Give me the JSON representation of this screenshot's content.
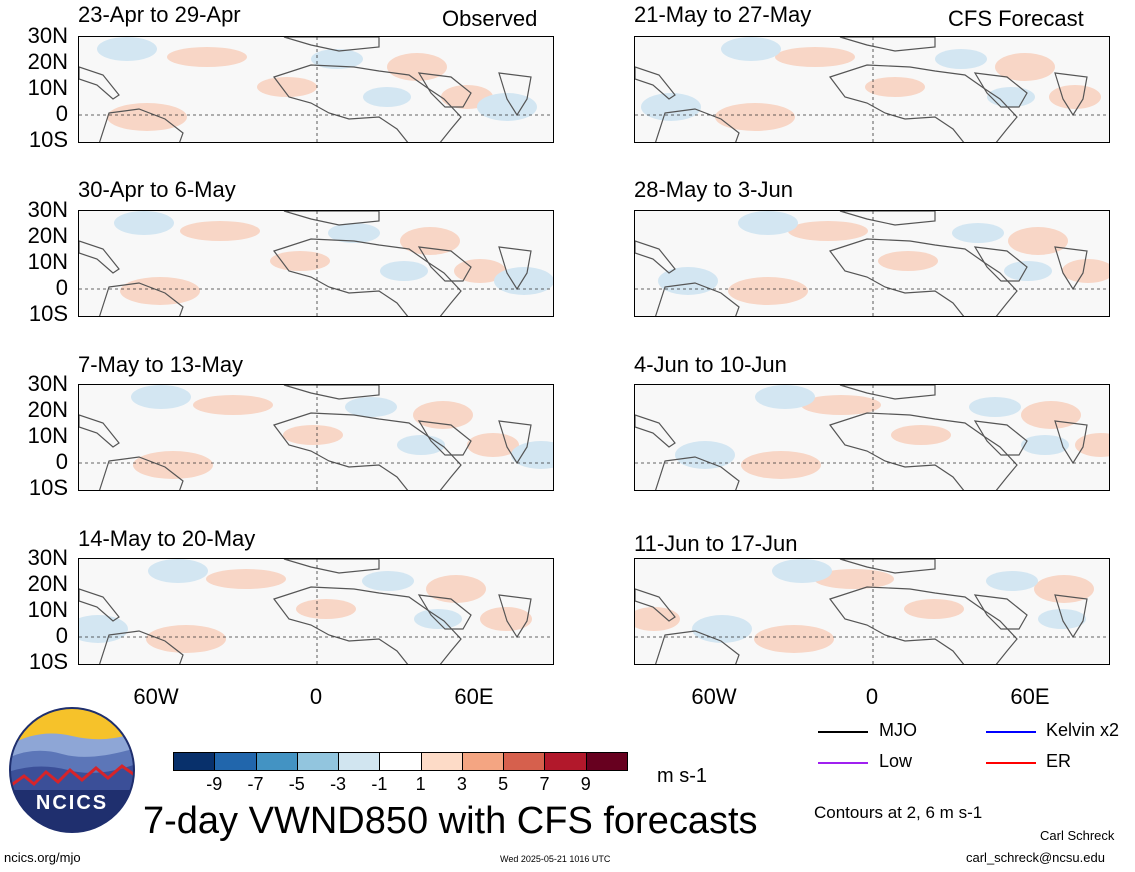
{
  "sources": {
    "left": "Observed",
    "right": "CFS Forecast"
  },
  "panels": [
    {
      "col": "left",
      "period": "23-Apr to 29-Apr"
    },
    {
      "col": "left",
      "period": "30-Apr to 6-May"
    },
    {
      "col": "left",
      "period": "7-May to 13-May"
    },
    {
      "col": "left",
      "period": "14-May to 20-May"
    },
    {
      "col": "right",
      "period": "21-May to 27-May"
    },
    {
      "col": "right",
      "period": "28-May to 3-Jun"
    },
    {
      "col": "right",
      "period": "4-Jun to 10-Jun"
    },
    {
      "col": "right",
      "period": "11-Jun to 17-Jun"
    }
  ],
  "lat_labels": [
    "30N",
    "20N",
    "10N",
    "0",
    "10S"
  ],
  "lon_labels": [
    "60W",
    "0",
    "60E"
  ],
  "colorbar": {
    "ticks": [
      "-9",
      "-7",
      "-5",
      "-3",
      "-1",
      "1",
      "3",
      "5",
      "7",
      "9"
    ],
    "colors": [
      "#08306b",
      "#2166ac",
      "#4393c3",
      "#92c5de",
      "#d1e5f0",
      "#ffffff",
      "#fddbc7",
      "#f4a582",
      "#d6604d",
      "#b2182b",
      "#67001f"
    ],
    "units": "m s-1"
  },
  "legend": [
    {
      "label": "MJO",
      "color": "#000000"
    },
    {
      "label": "Kelvin x2",
      "color": "#0000ff"
    },
    {
      "label": "Low",
      "color": "#a020f0"
    },
    {
      "label": "ER",
      "color": "#ff0000"
    }
  ],
  "contour_note": "Contours at 2, 6 m s-1",
  "logo_text": "NCICS",
  "main_title": "7-day VWND850 with CFS forecasts",
  "footer": {
    "left_url": "ncics.org/mjo",
    "timestamp": "Wed 2025-05-21 1016 UTC",
    "author": "Carl Schreck",
    "email": "carl_schreck@ncsu.edu"
  }
}
